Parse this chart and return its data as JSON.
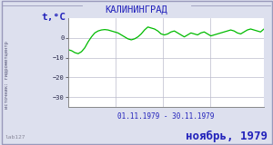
{
  "title": "КАЛИНИНГРАД",
  "ylabel": "t,°C",
  "xlabel_date": "01.11.1979 - 30.11.1979",
  "footer_left": "lab127",
  "footer_right": "ноябрь, 1979",
  "source_label": "источник: гидрометцентр",
  "ylim": [
    -35,
    10
  ],
  "yticks": [
    0,
    -10,
    -20,
    -30
  ],
  "line_color": "#00bb00",
  "bg_color": "#dde0ee",
  "plot_bg": "#ffffff",
  "grid_color": "#bbbbcc",
  "title_color": "#2222bb",
  "label_color": "#2222bb",
  "source_color": "#555577",
  "footer_color": "#888899",
  "temperatures": [
    -6.0,
    -6.5,
    -7.5,
    -8.0,
    -7.0,
    -5.0,
    -2.0,
    0.5,
    2.5,
    3.5,
    4.0,
    4.2,
    4.0,
    3.5,
    3.0,
    2.5,
    1.5,
    0.5,
    -0.5,
    -1.0,
    -0.5,
    0.5,
    2.0,
    4.0,
    5.5,
    5.0,
    4.5,
    3.5,
    2.0,
    1.5,
    2.0,
    3.0,
    3.5,
    2.5,
    1.5,
    0.5,
    1.5,
    2.5,
    2.0,
    1.5,
    2.5,
    3.0,
    2.0,
    1.0,
    1.5,
    2.0,
    2.5,
    3.0,
    3.5,
    4.0,
    3.5,
    2.5,
    2.0,
    3.0,
    4.0,
    4.5,
    4.0,
    3.5,
    3.0,
    4.5
  ]
}
